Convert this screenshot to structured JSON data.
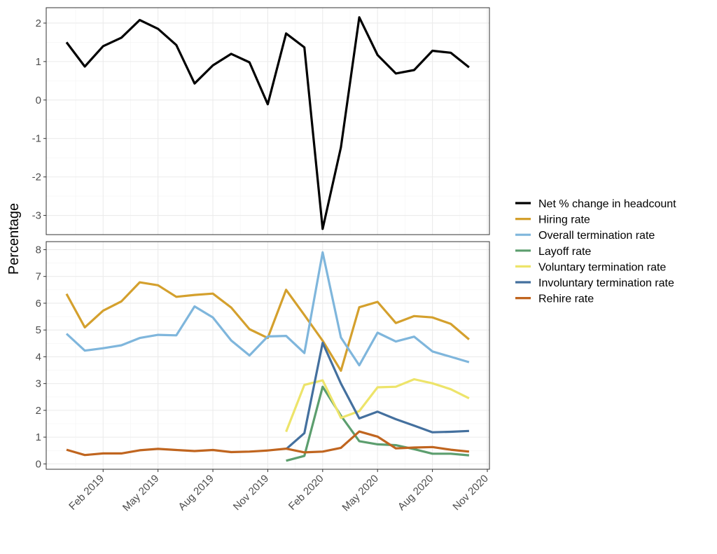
{
  "chart_data": {
    "type": "line",
    "ylabel": "Percentage",
    "x": [
      "2018-12",
      "2019-01",
      "2019-02",
      "2019-03",
      "2019-04",
      "2019-05",
      "2019-06",
      "2019-07",
      "2019-08",
      "2019-09",
      "2019-10",
      "2019-11",
      "2019-12",
      "2020-01",
      "2020-02",
      "2020-03",
      "2020-04",
      "2020-05",
      "2020-06",
      "2020-07",
      "2020-08",
      "2020-09",
      "2020-10",
      "2020-11"
    ],
    "x_tick_labels": [
      "Feb 2019",
      "May 2019",
      "Aug 2019",
      "Nov 2019",
      "Feb 2020",
      "May 2020",
      "Aug 2020",
      "Nov 2020"
    ],
    "x_tick_months": [
      "2019-02",
      "2019-05",
      "2019-08",
      "2019-11",
      "2020-02",
      "2020-05",
      "2020-08",
      "2020-11"
    ],
    "grid": true,
    "legend_position": "right",
    "panels": [
      {
        "ylim": [
          -3.5,
          2.4
        ],
        "y_ticks": [
          -3,
          -2,
          -1,
          0,
          1,
          2
        ],
        "y_tick_labels": [
          "-3",
          "-2",
          "-1",
          "0",
          "1",
          "2"
        ],
        "series": [
          {
            "name": "Net % change in headcount",
            "color": "#000000",
            "values": [
              1.5,
              0.87,
              1.4,
              1.62,
              2.08,
              1.85,
              1.43,
              0.43,
              0.9,
              1.2,
              0.98,
              -0.11,
              1.73,
              1.37,
              -3.35,
              -1.23,
              2.15,
              1.17,
              0.69,
              0.78,
              1.28,
              1.23,
              0.85,
              null
            ]
          }
        ]
      },
      {
        "ylim": [
          -0.2,
          8.3
        ],
        "y_ticks": [
          0,
          1,
          2,
          3,
          4,
          5,
          6,
          7,
          8
        ],
        "y_tick_labels": [
          "0",
          "1",
          "2",
          "3",
          "4",
          "5",
          "6",
          "7",
          "8"
        ],
        "series": [
          {
            "name": "Hiring rate",
            "color": "#d4a02d",
            "values": [
              6.35,
              5.1,
              5.72,
              6.07,
              6.78,
              6.67,
              6.24,
              6.31,
              6.36,
              5.84,
              5.03,
              4.7,
              6.5,
              5.56,
              4.6,
              3.48,
              5.85,
              6.05,
              5.26,
              5.52,
              5.47,
              5.23,
              4.65,
              null
            ]
          },
          {
            "name": "Overall termination rate",
            "color": "#7fb6dc",
            "values": [
              4.86,
              4.23,
              4.32,
              4.43,
              4.7,
              4.82,
              4.8,
              5.88,
              5.47,
              4.61,
              4.05,
              4.76,
              4.78,
              4.14,
              7.9,
              4.72,
              3.68,
              4.9,
              4.57,
              4.75,
              4.2,
              4.0,
              3.8,
              null
            ]
          },
          {
            "name": "Layoff rate",
            "color": "#5c9e6e",
            "values": [
              null,
              null,
              null,
              null,
              null,
              null,
              null,
              null,
              null,
              null,
              null,
              null,
              0.12,
              0.3,
              2.88,
              1.8,
              0.85,
              0.73,
              0.7,
              0.55,
              0.38,
              0.38,
              0.32,
              null
            ]
          },
          {
            "name": "Voluntary termination rate",
            "color": "#ede46a",
            "values": [
              null,
              null,
              null,
              null,
              null,
              null,
              null,
              null,
              null,
              null,
              null,
              null,
              1.2,
              2.95,
              3.12,
              1.72,
              1.97,
              2.86,
              2.88,
              3.16,
              3.01,
              2.79,
              2.45,
              null
            ]
          },
          {
            "name": "Involuntary termination rate",
            "color": "#44709e",
            "values": [
              null,
              null,
              null,
              null,
              null,
              null,
              null,
              null,
              null,
              null,
              null,
              null,
              0.55,
              1.15,
              4.52,
              3.0,
              1.7,
              1.95,
              1.67,
              1.43,
              1.18,
              1.2,
              1.23,
              null
            ]
          },
          {
            "name": "Rehire rate",
            "color": "#c0651f",
            "values": [
              0.53,
              0.33,
              0.39,
              0.39,
              0.51,
              0.56,
              0.52,
              0.48,
              0.52,
              0.44,
              0.46,
              0.5,
              0.57,
              0.43,
              0.46,
              0.6,
              1.21,
              1.02,
              0.58,
              0.61,
              0.63,
              0.53,
              0.46,
              null
            ]
          }
        ]
      }
    ],
    "legend": [
      {
        "name": "Net % change in headcount",
        "color": "#000000"
      },
      {
        "name": "Hiring rate",
        "color": "#d4a02d"
      },
      {
        "name": "Overall termination rate",
        "color": "#7fb6dc"
      },
      {
        "name": "Layoff rate",
        "color": "#5c9e6e"
      },
      {
        "name": "Voluntary termination rate",
        "color": "#ede46a"
      },
      {
        "name": "Involuntary termination rate",
        "color": "#44709e"
      },
      {
        "name": "Rehire rate",
        "color": "#c0651f"
      }
    ]
  }
}
